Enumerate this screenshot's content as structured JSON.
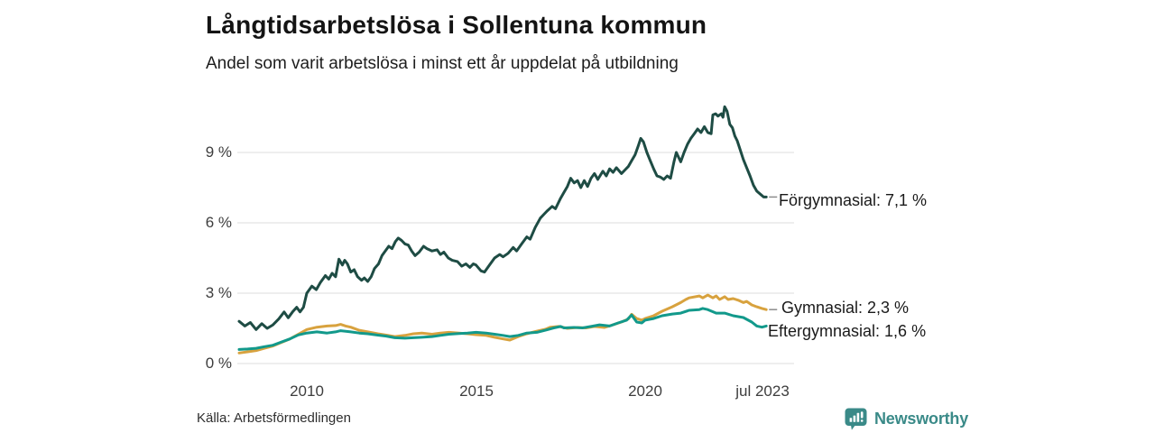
{
  "chart_data": {
    "type": "line",
    "title": "Långtidsarbetslösa i Sollentuna kommun",
    "subtitle": "Andel som varit arbetslösa i minst ett år uppdelat på utbildning",
    "source": "Källa: Arbetsförmedlingen",
    "grid": "horizontal",
    "grid_color": "#e3e3e3",
    "tick_color": "#3d3d3d",
    "label_dash_color": "#8c8c8c",
    "x_axis": {
      "range": [
        2008.0,
        2023.58
      ],
      "ticks": [
        {
          "label": "2010",
          "year": 2010
        },
        {
          "label": "2015",
          "year": 2015
        },
        {
          "label": "2020",
          "year": 2020
        },
        {
          "label": "jul 2023",
          "year": 2023.5
        }
      ]
    },
    "y_axis": {
      "unit": "%",
      "range": [
        0,
        11.2
      ],
      "ticks": [
        {
          "label": "9 %",
          "value": 9
        },
        {
          "label": "6 %",
          "value": 6
        },
        {
          "label": "3 %",
          "value": 3
        },
        {
          "label": "0 %",
          "value": 0
        }
      ]
    },
    "legend_position": "end-of-line-labels",
    "series": [
      {
        "name": "Förgymnasial",
        "label": "Förgymnasial: 7,1 %",
        "last_value": "7,1 %",
        "color": "#1e4c44",
        "label_dash": true,
        "points": [
          [
            2008.0,
            1.8
          ],
          [
            2008.17,
            1.6
          ],
          [
            2008.33,
            1.75
          ],
          [
            2008.5,
            1.45
          ],
          [
            2008.67,
            1.7
          ],
          [
            2008.83,
            1.5
          ],
          [
            2009.0,
            1.65
          ],
          [
            2009.17,
            1.9
          ],
          [
            2009.33,
            2.2
          ],
          [
            2009.45,
            1.95
          ],
          [
            2009.58,
            2.2
          ],
          [
            2009.7,
            2.4
          ],
          [
            2009.8,
            2.2
          ],
          [
            2009.9,
            2.4
          ],
          [
            2010.0,
            3.0
          ],
          [
            2010.15,
            3.3
          ],
          [
            2010.28,
            3.15
          ],
          [
            2010.4,
            3.45
          ],
          [
            2010.55,
            3.75
          ],
          [
            2010.65,
            3.6
          ],
          [
            2010.75,
            3.85
          ],
          [
            2010.85,
            3.7
          ],
          [
            2010.95,
            4.45
          ],
          [
            2011.05,
            4.2
          ],
          [
            2011.12,
            4.4
          ],
          [
            2011.2,
            4.25
          ],
          [
            2011.3,
            3.9
          ],
          [
            2011.4,
            4.0
          ],
          [
            2011.5,
            3.7
          ],
          [
            2011.62,
            3.55
          ],
          [
            2011.7,
            3.65
          ],
          [
            2011.8,
            3.5
          ],
          [
            2011.9,
            3.7
          ],
          [
            2012.0,
            4.05
          ],
          [
            2012.12,
            4.25
          ],
          [
            2012.22,
            4.6
          ],
          [
            2012.32,
            4.8
          ],
          [
            2012.42,
            5.0
          ],
          [
            2012.52,
            4.9
          ],
          [
            2012.62,
            5.2
          ],
          [
            2012.7,
            5.35
          ],
          [
            2012.8,
            5.25
          ],
          [
            2012.9,
            5.1
          ],
          [
            2013.0,
            5.05
          ],
          [
            2013.1,
            4.8
          ],
          [
            2013.2,
            4.6
          ],
          [
            2013.32,
            4.75
          ],
          [
            2013.45,
            5.0
          ],
          [
            2013.55,
            4.9
          ],
          [
            2013.7,
            4.8
          ],
          [
            2013.85,
            4.85
          ],
          [
            2013.95,
            4.65
          ],
          [
            2014.05,
            4.75
          ],
          [
            2014.18,
            4.5
          ],
          [
            2014.3,
            4.4
          ],
          [
            2014.45,
            4.35
          ],
          [
            2014.58,
            4.15
          ],
          [
            2014.7,
            4.25
          ],
          [
            2014.82,
            4.1
          ],
          [
            2014.92,
            4.25
          ],
          [
            2015.0,
            4.2
          ],
          [
            2015.15,
            3.95
          ],
          [
            2015.25,
            3.9
          ],
          [
            2015.4,
            4.2
          ],
          [
            2015.55,
            4.5
          ],
          [
            2015.7,
            4.65
          ],
          [
            2015.8,
            4.55
          ],
          [
            2015.95,
            4.7
          ],
          [
            2016.1,
            4.95
          ],
          [
            2016.2,
            4.8
          ],
          [
            2016.35,
            5.1
          ],
          [
            2016.5,
            5.4
          ],
          [
            2016.6,
            5.3
          ],
          [
            2016.75,
            5.8
          ],
          [
            2016.9,
            6.2
          ],
          [
            2017.0,
            6.35
          ],
          [
            2017.1,
            6.5
          ],
          [
            2017.25,
            6.7
          ],
          [
            2017.35,
            6.6
          ],
          [
            2017.5,
            7.05
          ],
          [
            2017.6,
            7.3
          ],
          [
            2017.7,
            7.55
          ],
          [
            2017.8,
            7.9
          ],
          [
            2017.9,
            7.7
          ],
          [
            2018.0,
            7.8
          ],
          [
            2018.1,
            7.5
          ],
          [
            2018.2,
            7.8
          ],
          [
            2018.3,
            7.55
          ],
          [
            2018.4,
            7.9
          ],
          [
            2018.5,
            8.1
          ],
          [
            2018.6,
            7.85
          ],
          [
            2018.75,
            8.2
          ],
          [
            2018.85,
            8.0
          ],
          [
            2018.95,
            8.3
          ],
          [
            2019.05,
            8.15
          ],
          [
            2019.15,
            8.35
          ],
          [
            2019.3,
            8.1
          ],
          [
            2019.4,
            8.25
          ],
          [
            2019.5,
            8.4
          ],
          [
            2019.6,
            8.65
          ],
          [
            2019.7,
            8.9
          ],
          [
            2019.8,
            9.3
          ],
          [
            2019.87,
            9.6
          ],
          [
            2019.95,
            9.45
          ],
          [
            2020.05,
            9.0
          ],
          [
            2020.15,
            8.65
          ],
          [
            2020.25,
            8.3
          ],
          [
            2020.35,
            8.0
          ],
          [
            2020.45,
            7.95
          ],
          [
            2020.55,
            7.85
          ],
          [
            2020.65,
            8.0
          ],
          [
            2020.75,
            7.9
          ],
          [
            2020.85,
            8.6
          ],
          [
            2020.92,
            9.0
          ],
          [
            2021.05,
            8.6
          ],
          [
            2021.15,
            9.0
          ],
          [
            2021.25,
            9.35
          ],
          [
            2021.35,
            9.6
          ],
          [
            2021.45,
            9.8
          ],
          [
            2021.55,
            10.0
          ],
          [
            2021.65,
            9.85
          ],
          [
            2021.75,
            10.1
          ],
          [
            2021.85,
            9.85
          ],
          [
            2021.95,
            9.8
          ],
          [
            2022.0,
            10.6
          ],
          [
            2022.08,
            10.65
          ],
          [
            2022.15,
            10.55
          ],
          [
            2022.25,
            10.65
          ],
          [
            2022.3,
            10.5
          ],
          [
            2022.35,
            10.95
          ],
          [
            2022.42,
            10.75
          ],
          [
            2022.5,
            10.2
          ],
          [
            2022.58,
            10.05
          ],
          [
            2022.65,
            9.7
          ],
          [
            2022.72,
            9.5
          ],
          [
            2022.8,
            9.15
          ],
          [
            2022.9,
            8.7
          ],
          [
            2023.0,
            8.35
          ],
          [
            2023.1,
            8.0
          ],
          [
            2023.2,
            7.6
          ],
          [
            2023.3,
            7.35
          ],
          [
            2023.42,
            7.2
          ],
          [
            2023.5,
            7.1
          ],
          [
            2023.58,
            7.1
          ]
        ]
      },
      {
        "name": "Gymnasial",
        "label": "Gymnasial: 2,3 %",
        "last_value": "2,3 %",
        "color": "#d8a23e",
        "label_dash": true,
        "points": [
          [
            2008.0,
            0.45
          ],
          [
            2008.25,
            0.5
          ],
          [
            2008.5,
            0.55
          ],
          [
            2008.75,
            0.65
          ],
          [
            2009.0,
            0.75
          ],
          [
            2009.25,
            0.9
          ],
          [
            2009.5,
            1.05
          ],
          [
            2009.75,
            1.25
          ],
          [
            2010.0,
            1.45
          ],
          [
            2010.3,
            1.55
          ],
          [
            2010.6,
            1.6
          ],
          [
            2010.85,
            1.62
          ],
          [
            2011.0,
            1.67
          ],
          [
            2011.15,
            1.6
          ],
          [
            2011.3,
            1.55
          ],
          [
            2011.55,
            1.42
          ],
          [
            2011.8,
            1.35
          ],
          [
            2012.1,
            1.27
          ],
          [
            2012.35,
            1.21
          ],
          [
            2012.6,
            1.15
          ],
          [
            2012.9,
            1.2
          ],
          [
            2013.15,
            1.27
          ],
          [
            2013.4,
            1.3
          ],
          [
            2013.7,
            1.25
          ],
          [
            2013.95,
            1.3
          ],
          [
            2014.2,
            1.33
          ],
          [
            2014.5,
            1.3
          ],
          [
            2014.75,
            1.27
          ],
          [
            2015.0,
            1.23
          ],
          [
            2015.3,
            1.2
          ],
          [
            2015.55,
            1.12
          ],
          [
            2015.8,
            1.05
          ],
          [
            2016.0,
            1.0
          ],
          [
            2016.25,
            1.15
          ],
          [
            2016.5,
            1.27
          ],
          [
            2016.8,
            1.38
          ],
          [
            2017.05,
            1.46
          ],
          [
            2017.2,
            1.55
          ],
          [
            2017.45,
            1.58
          ],
          [
            2017.7,
            1.5
          ],
          [
            2018.0,
            1.54
          ],
          [
            2018.25,
            1.52
          ],
          [
            2018.5,
            1.58
          ],
          [
            2018.8,
            1.54
          ],
          [
            2019.05,
            1.65
          ],
          [
            2019.3,
            1.77
          ],
          [
            2019.5,
            1.9
          ],
          [
            2019.6,
            2.1
          ],
          [
            2019.75,
            1.92
          ],
          [
            2019.9,
            1.85
          ],
          [
            2020.0,
            1.92
          ],
          [
            2020.25,
            2.04
          ],
          [
            2020.5,
            2.23
          ],
          [
            2020.8,
            2.42
          ],
          [
            2021.05,
            2.6
          ],
          [
            2021.2,
            2.73
          ],
          [
            2021.3,
            2.8
          ],
          [
            2021.6,
            2.88
          ],
          [
            2021.7,
            2.8
          ],
          [
            2021.85,
            2.92
          ],
          [
            2022.0,
            2.8
          ],
          [
            2022.1,
            2.88
          ],
          [
            2022.2,
            2.73
          ],
          [
            2022.35,
            2.85
          ],
          [
            2022.45,
            2.73
          ],
          [
            2022.6,
            2.77
          ],
          [
            2022.75,
            2.7
          ],
          [
            2022.9,
            2.6
          ],
          [
            2023.0,
            2.65
          ],
          [
            2023.15,
            2.5
          ],
          [
            2023.3,
            2.42
          ],
          [
            2023.45,
            2.35
          ],
          [
            2023.58,
            2.3
          ]
        ]
      },
      {
        "name": "Eftergymnasial",
        "label": "Eftergymnasial: 1,6 %",
        "last_value": "1,6 %",
        "color": "#12998b",
        "label_dash": false,
        "points": [
          [
            2008.0,
            0.6
          ],
          [
            2008.25,
            0.62
          ],
          [
            2008.5,
            0.65
          ],
          [
            2008.75,
            0.72
          ],
          [
            2009.0,
            0.78
          ],
          [
            2009.25,
            0.92
          ],
          [
            2009.5,
            1.05
          ],
          [
            2009.75,
            1.22
          ],
          [
            2010.0,
            1.3
          ],
          [
            2010.3,
            1.35
          ],
          [
            2010.6,
            1.3
          ],
          [
            2010.85,
            1.35
          ],
          [
            2011.0,
            1.4
          ],
          [
            2011.3,
            1.35
          ],
          [
            2011.55,
            1.3
          ],
          [
            2011.8,
            1.27
          ],
          [
            2012.1,
            1.21
          ],
          [
            2012.35,
            1.17
          ],
          [
            2012.6,
            1.1
          ],
          [
            2012.9,
            1.08
          ],
          [
            2013.15,
            1.1
          ],
          [
            2013.4,
            1.12
          ],
          [
            2013.7,
            1.15
          ],
          [
            2013.95,
            1.2
          ],
          [
            2014.2,
            1.25
          ],
          [
            2014.5,
            1.28
          ],
          [
            2014.75,
            1.3
          ],
          [
            2015.0,
            1.33
          ],
          [
            2015.3,
            1.3
          ],
          [
            2015.55,
            1.25
          ],
          [
            2015.8,
            1.2
          ],
          [
            2016.0,
            1.15
          ],
          [
            2016.25,
            1.2
          ],
          [
            2016.5,
            1.3
          ],
          [
            2016.8,
            1.33
          ],
          [
            2017.05,
            1.42
          ],
          [
            2017.3,
            1.52
          ],
          [
            2017.5,
            1.58
          ],
          [
            2017.6,
            1.52
          ],
          [
            2017.9,
            1.54
          ],
          [
            2018.15,
            1.52
          ],
          [
            2018.4,
            1.58
          ],
          [
            2018.65,
            1.65
          ],
          [
            2018.95,
            1.6
          ],
          [
            2019.2,
            1.73
          ],
          [
            2019.45,
            1.85
          ],
          [
            2019.6,
            2.07
          ],
          [
            2019.75,
            1.77
          ],
          [
            2019.9,
            1.73
          ],
          [
            2020.0,
            1.85
          ],
          [
            2020.25,
            1.92
          ],
          [
            2020.5,
            2.04
          ],
          [
            2020.8,
            2.11
          ],
          [
            2021.05,
            2.15
          ],
          [
            2021.3,
            2.27
          ],
          [
            2021.6,
            2.3
          ],
          [
            2021.7,
            2.35
          ],
          [
            2021.85,
            2.3
          ],
          [
            2022.1,
            2.15
          ],
          [
            2022.35,
            2.15
          ],
          [
            2022.6,
            2.04
          ],
          [
            2022.9,
            1.96
          ],
          [
            2023.15,
            1.77
          ],
          [
            2023.3,
            1.6
          ],
          [
            2023.45,
            1.55
          ],
          [
            2023.58,
            1.6
          ]
        ]
      }
    ]
  },
  "branding": {
    "logo_text": "Newsworthy",
    "color": "#3a8a88"
  }
}
